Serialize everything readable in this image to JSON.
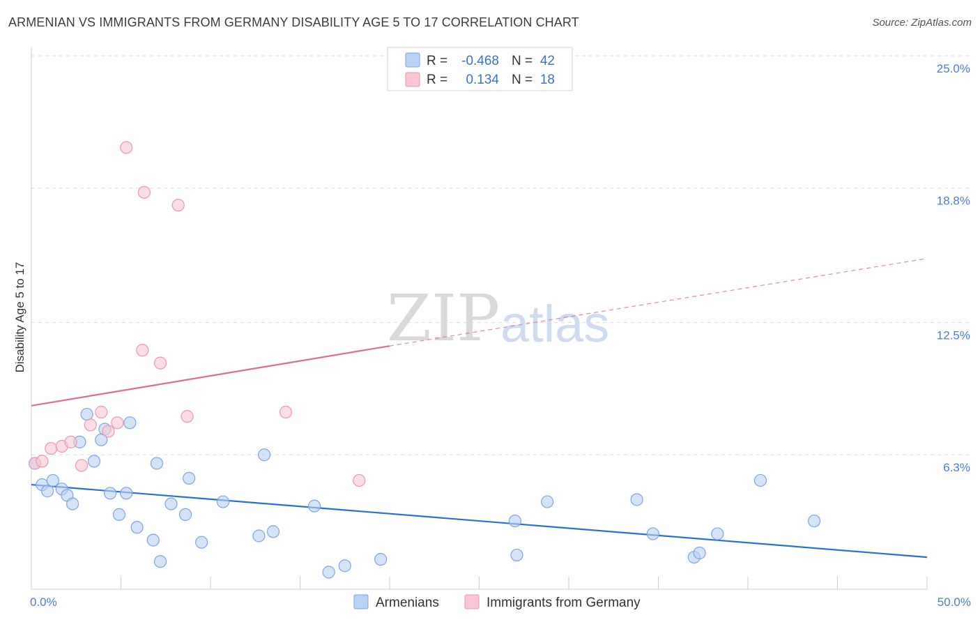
{
  "title": "ARMENIAN VS IMMIGRANTS FROM GERMANY DISABILITY AGE 5 TO 17 CORRELATION CHART",
  "source": "Source: ZipAtlas.com",
  "watermark": {
    "zip": "ZIP",
    "atlas": "atlas"
  },
  "colors": {
    "blue_fill": "#b9d1f2",
    "blue_stroke": "#7ea6e0",
    "blue_line": "#2a6fd4",
    "pink_fill": "#f8c6d4",
    "pink_stroke": "#eb98b1",
    "pink_line": "#e06b92",
    "grid": "#dddddd",
    "tick_text": "#4a7fcf"
  },
  "legend": {
    "rows": [
      {
        "series": "Armenians",
        "r_label": "R =",
        "r_value": "-0.468",
        "n_label": "N =",
        "n_value": "42"
      },
      {
        "series": "Immigrants from Germany",
        "r_label": "R =",
        "r_value": "0.134",
        "n_label": "N =",
        "n_value": "18"
      }
    ]
  },
  "chart_data": {
    "type": "scatter",
    "title": "ARMENIAN VS IMMIGRANTS FROM GERMANY DISABILITY AGE 5 TO 17 CORRELATION CHART",
    "xlabel": "",
    "ylabel": "Disability Age 5 to 17",
    "xlim": [
      0,
      50
    ],
    "ylim": [
      0,
      25
    ],
    "x_tick_labels": [
      "0.0%",
      "50.0%"
    ],
    "y_ticks": [
      6.3,
      12.5,
      18.8,
      25.0
    ],
    "y_tick_labels": [
      "6.3%",
      "12.5%",
      "18.8%",
      "25.0%"
    ],
    "grid": true,
    "series": [
      {
        "name": "Armenians",
        "points": [
          [
            0.2,
            5.9
          ],
          [
            0.6,
            4.9
          ],
          [
            0.9,
            4.6
          ],
          [
            1.2,
            5.1
          ],
          [
            1.7,
            4.7
          ],
          [
            2.0,
            4.4
          ],
          [
            2.3,
            4.0
          ],
          [
            2.7,
            6.9
          ],
          [
            3.1,
            8.2
          ],
          [
            3.5,
            6.0
          ],
          [
            3.9,
            7.0
          ],
          [
            4.1,
            7.5
          ],
          [
            4.4,
            4.5
          ],
          [
            4.9,
            3.5
          ],
          [
            5.3,
            4.5
          ],
          [
            5.5,
            7.8
          ],
          [
            5.9,
            2.9
          ],
          [
            6.8,
            2.3
          ],
          [
            7.0,
            5.9
          ],
          [
            7.2,
            1.3
          ],
          [
            7.8,
            4.0
          ],
          [
            8.6,
            3.5
          ],
          [
            8.8,
            5.2
          ],
          [
            9.5,
            2.2
          ],
          [
            10.7,
            4.1
          ],
          [
            12.7,
            2.5
          ],
          [
            13.0,
            6.3
          ],
          [
            13.5,
            2.7
          ],
          [
            15.8,
            3.9
          ],
          [
            16.6,
            0.8
          ],
          [
            17.5,
            1.1
          ],
          [
            19.5,
            1.4
          ],
          [
            27.0,
            3.2
          ],
          [
            27.1,
            1.6
          ],
          [
            28.8,
            4.1
          ],
          [
            33.8,
            4.2
          ],
          [
            34.7,
            2.6
          ],
          [
            37.0,
            1.5
          ],
          [
            37.3,
            1.7
          ],
          [
            38.3,
            2.6
          ],
          [
            40.7,
            5.1
          ],
          [
            43.7,
            3.2
          ]
        ],
        "trend": {
          "x": [
            0,
            50
          ],
          "y": [
            4.9,
            1.5
          ]
        }
      },
      {
        "name": "Immigrants from Germany",
        "points": [
          [
            0.2,
            5.9
          ],
          [
            0.6,
            6.0
          ],
          [
            1.1,
            6.6
          ],
          [
            1.7,
            6.7
          ],
          [
            2.2,
            6.9
          ],
          [
            2.8,
            5.8
          ],
          [
            3.3,
            7.7
          ],
          [
            3.9,
            8.3
          ],
          [
            4.3,
            7.4
          ],
          [
            4.8,
            7.8
          ],
          [
            5.3,
            20.7
          ],
          [
            6.2,
            11.2
          ],
          [
            6.3,
            18.6
          ],
          [
            7.2,
            10.6
          ],
          [
            8.2,
            18.0
          ],
          [
            8.7,
            8.1
          ],
          [
            14.2,
            8.3
          ],
          [
            18.3,
            5.1
          ]
        ],
        "trend": {
          "x": [
            0,
            20
          ],
          "y": [
            8.6,
            11.4
          ]
        },
        "trend_extension": {
          "x": [
            20,
            50
          ],
          "y": [
            11.4,
            15.5
          ]
        }
      }
    ]
  }
}
